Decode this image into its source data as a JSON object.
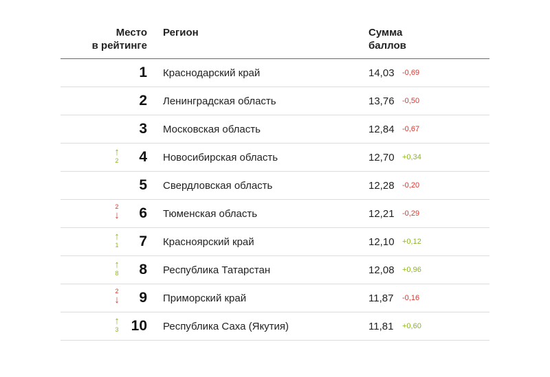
{
  "header": {
    "rank_line1": "Место",
    "rank_line2": "в рейтинге",
    "region": "Регион",
    "score_line1": "Сумма",
    "score_line2": "баллов"
  },
  "colors": {
    "up": "#8cb51e",
    "down": "#d8362e",
    "text": "#222222"
  },
  "rows": [
    {
      "rank": "1",
      "change_dir": "",
      "change": "",
      "region": "Краснодарский край",
      "score": "14,03",
      "delta": "-0,69",
      "delta_sign": "neg"
    },
    {
      "rank": "2",
      "change_dir": "",
      "change": "",
      "region": "Ленинградская область",
      "score": "13,76",
      "delta": "-0,50",
      "delta_sign": "neg"
    },
    {
      "rank": "3",
      "change_dir": "",
      "change": "",
      "region": "Московская область",
      "score": "12,84",
      "delta": "-0,67",
      "delta_sign": "neg"
    },
    {
      "rank": "4",
      "change_dir": "up",
      "change": "2",
      "region": "Новосибирская область",
      "score": "12,70",
      "delta": "+0,34",
      "delta_sign": "pos"
    },
    {
      "rank": "5",
      "change_dir": "",
      "change": "",
      "region": "Свердловская область",
      "score": "12,28",
      "delta": "-0,20",
      "delta_sign": "neg"
    },
    {
      "rank": "6",
      "change_dir": "down",
      "change": "2",
      "region": "Тюменская область",
      "score": "12,21",
      "delta": "-0,29",
      "delta_sign": "neg"
    },
    {
      "rank": "7",
      "change_dir": "up",
      "change": "1",
      "region": "Красноярский край",
      "score": "12,10",
      "delta": "+0,12",
      "delta_sign": "pos"
    },
    {
      "rank": "8",
      "change_dir": "up",
      "change": "8",
      "region": "Республика Татарстан",
      "score": "12,08",
      "delta": "+0,96",
      "delta_sign": "pos"
    },
    {
      "rank": "9",
      "change_dir": "down",
      "change": "2",
      "region": "Приморский край",
      "score": "11,87",
      "delta": "-0,16",
      "delta_sign": "neg"
    },
    {
      "rank": "10",
      "change_dir": "up",
      "change": "3",
      "region": "Республика Саха (Якутия)",
      "score": "11,81",
      "delta": "+0,60",
      "delta_sign": "pos"
    }
  ]
}
